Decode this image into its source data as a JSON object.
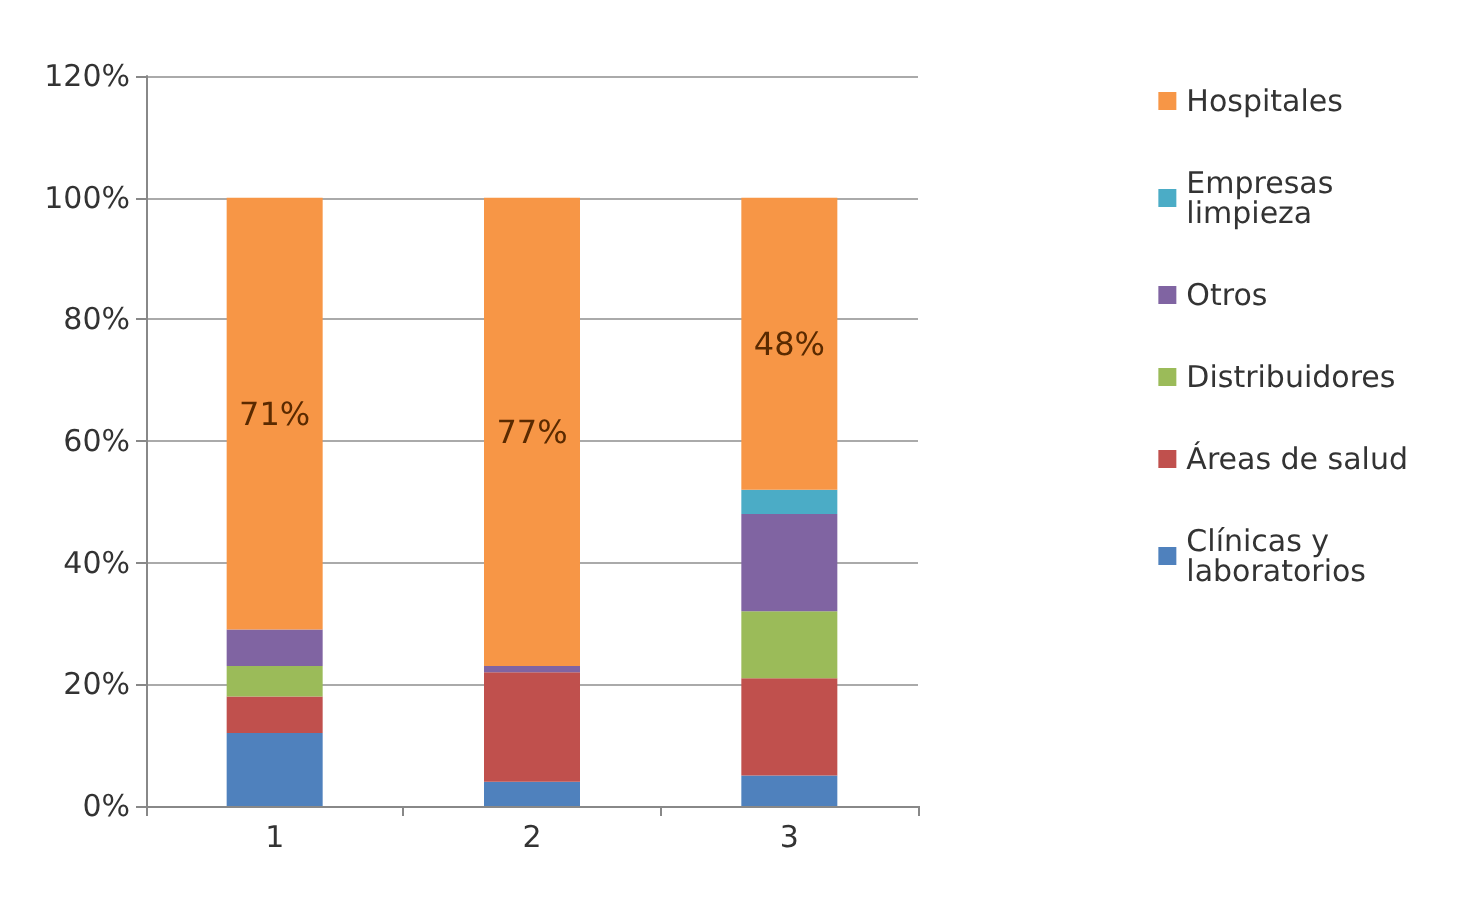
{
  "chart_data": {
    "type": "bar",
    "stacked": true,
    "categories": [
      "1",
      "2",
      "3"
    ],
    "series": [
      {
        "name": "Clínicas y laboratorios",
        "color": "#4f81bd",
        "values": [
          12,
          4,
          5
        ]
      },
      {
        "name": "Áreas de salud",
        "color": "#c0504d",
        "values": [
          6,
          18,
          16
        ]
      },
      {
        "name": "Distribuidores",
        "color": "#9bbb59",
        "values": [
          5,
          0,
          11
        ]
      },
      {
        "name": "Otros",
        "color": "#8064a2",
        "values": [
          6,
          1,
          16
        ]
      },
      {
        "name": "Empresas limpieza",
        "color": "#4bacc6",
        "values": [
          0,
          0,
          4
        ]
      },
      {
        "name": "Hospitales",
        "color": "#f79646",
        "values": [
          71,
          77,
          48
        ],
        "value_labels": [
          "71%",
          "77%",
          "48%"
        ]
      }
    ],
    "ylim": [
      0,
      120
    ],
    "yticks": [
      {
        "value": 0,
        "label": "0%"
      },
      {
        "value": 20,
        "label": "20%"
      },
      {
        "value": 40,
        "label": "40%"
      },
      {
        "value": 60,
        "label": "60%"
      },
      {
        "value": 80,
        "label": "80%"
      },
      {
        "value": 100,
        "label": "100%"
      },
      {
        "value": 120,
        "label": "120%"
      }
    ],
    "grid": "y",
    "legend": "right"
  }
}
